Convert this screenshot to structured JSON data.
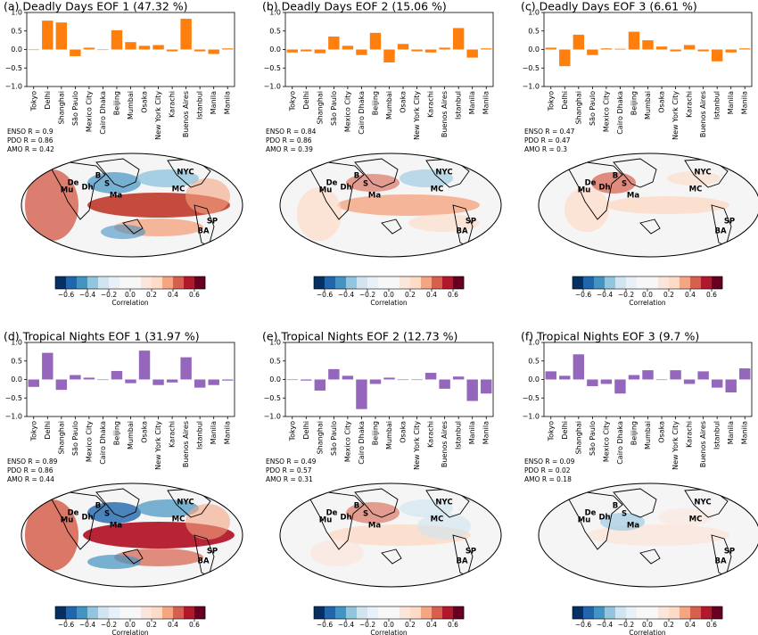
{
  "chart_data": [
    {
      "type": "bar",
      "title": "(a) Deadly Days EOF 1 (47.32 %)",
      "categories": [
        "Tokyo",
        "Delhi",
        "Shanghai",
        "São Paulo",
        "Mexico City",
        "Cairo Dhaka",
        "Beijing",
        "Mumbai",
        "Osaka",
        "New York City",
        "Karachi",
        "Buenos Aires",
        "Istanbul",
        "Manila",
        "Manila"
      ],
      "values": [
        0.0,
        0.78,
        0.73,
        -0.18,
        0.05,
        0.0,
        0.52,
        0.2,
        0.1,
        0.12,
        -0.05,
        0.83,
        -0.05,
        -0.12,
        0.03
      ],
      "color": "#ff7f0e",
      "ylim": [
        -1,
        1
      ],
      "yticks": [
        {
          "value": -1,
          "label": "−1.0"
        },
        {
          "value": -0.5,
          "label": "−0.5"
        },
        {
          "value": 0,
          "label": "0.0"
        },
        {
          "value": 0.5,
          "label": "0.5"
        },
        {
          "value": 1,
          "label": "1.0"
        }
      ],
      "annotations": [
        "ENSO R = 0.9",
        "PDO R = 0.86",
        "AMO R = 0.42"
      ],
      "map_labels": [
        "B",
        "S",
        "De",
        "Dh",
        "Mu",
        "Ma",
        "NYC",
        "MC",
        "SP",
        "BA"
      ],
      "colorbar": {
        "label": "Correlation",
        "lim": [
          -0.7,
          0.7
        ],
        "ticks": [
          {
            "value": -0.6,
            "label": "−0.6"
          },
          {
            "value": -0.4,
            "label": "−0.4"
          },
          {
            "value": -0.2,
            "label": "−0.2"
          },
          {
            "value": 0,
            "label": "0.0"
          },
          {
            "value": 0.2,
            "label": "0.2"
          },
          {
            "value": 0.4,
            "label": "0.4"
          },
          {
            "value": 0.6,
            "label": "0.6"
          }
        ]
      }
    },
    {
      "type": "bar",
      "title": "(b) Deadly Days EOF 2 (15.06 %)",
      "categories": [
        "Tokyo",
        "Delhi",
        "Shanghai",
        "São Paulo",
        "Mexico City",
        "Cairo Dhaka",
        "Beijing",
        "Mumbai",
        "Osaka",
        "New York City",
        "Karachi",
        "Buenos Aires",
        "Istanbul",
        "Manila",
        "Manila"
      ],
      "values": [
        -0.08,
        -0.05,
        -0.1,
        0.35,
        0.1,
        -0.15,
        0.45,
        -0.35,
        0.15,
        -0.05,
        -0.08,
        0.05,
        0.58,
        -0.22,
        0.03
      ],
      "color": "#ff7f0e",
      "ylim": [
        -1,
        1
      ],
      "yticks": [
        {
          "value": -1,
          "label": "−1.0"
        },
        {
          "value": -0.5,
          "label": "−0.5"
        },
        {
          "value": 0,
          "label": "0.0"
        },
        {
          "value": 0.5,
          "label": "0.5"
        },
        {
          "value": 1,
          "label": "1.0"
        }
      ],
      "annotations": [
        "ENSO R = 0.84",
        "PDO R = 0.86",
        "AMO R = 0.39"
      ],
      "map_labels": [
        "B",
        "S",
        "De",
        "Dh",
        "Mu",
        "Ma",
        "NYC",
        "MC",
        "SP",
        "BA"
      ],
      "colorbar": {
        "label": "Correlation",
        "lim": [
          -0.7,
          0.7
        ],
        "ticks": [
          {
            "value": -0.6,
            "label": "−0.6"
          },
          {
            "value": -0.4,
            "label": "−0.4"
          },
          {
            "value": -0.2,
            "label": "−0.2"
          },
          {
            "value": 0,
            "label": "0.0"
          },
          {
            "value": 0.2,
            "label": "0.2"
          },
          {
            "value": 0.4,
            "label": "0.4"
          },
          {
            "value": 0.6,
            "label": "0.6"
          }
        ]
      }
    },
    {
      "type": "bar",
      "title": "(c) Deadly Days EOF 3 (6.61 %)",
      "categories": [
        "Tokyo",
        "Delhi",
        "Shanghai",
        "São Paulo",
        "Mexico City",
        "Cairo Dhaka",
        "Beijing",
        "Mumbai",
        "Osaka",
        "New York City",
        "Karachi",
        "Buenos Aires",
        "Istanbul",
        "Manila",
        "Manila"
      ],
      "values": [
        0.05,
        -0.45,
        0.4,
        -0.15,
        0.03,
        0.02,
        0.48,
        0.25,
        0.08,
        -0.05,
        0.12,
        -0.05,
        -0.32,
        -0.08,
        0.03
      ],
      "color": "#ff7f0e",
      "ylim": [
        -1,
        1
      ],
      "yticks": [
        {
          "value": -1,
          "label": "−1.0"
        },
        {
          "value": -0.5,
          "label": "−0.5"
        },
        {
          "value": 0,
          "label": "0.0"
        },
        {
          "value": 0.5,
          "label": "0.5"
        },
        {
          "value": 1,
          "label": "1.0"
        }
      ],
      "annotations": [
        "ENSO R = 0.47",
        "PDO R = 0.47",
        "AMO R = 0.3"
      ],
      "map_labels": [
        "B",
        "S",
        "De",
        "Dh",
        "Mu",
        "Ma",
        "NYC",
        "MC",
        "SP",
        "BA"
      ],
      "colorbar": {
        "label": "Correlation",
        "lim": [
          -0.7,
          0.7
        ],
        "ticks": [
          {
            "value": -0.6,
            "label": "−0.6"
          },
          {
            "value": -0.4,
            "label": "−0.4"
          },
          {
            "value": -0.2,
            "label": "−0.2"
          },
          {
            "value": 0,
            "label": "0.0"
          },
          {
            "value": 0.2,
            "label": "0.2"
          },
          {
            "value": 0.4,
            "label": "0.4"
          },
          {
            "value": 0.6,
            "label": "0.6"
          }
        ]
      }
    },
    {
      "type": "bar",
      "title": "(d) Tropical Nights EOF 1 (31.97 %)",
      "categories": [
        "Tokyo",
        "Delhi",
        "Shanghai",
        "São Paulo",
        "Mexico City",
        "Cairo Dhaka",
        "Beijing",
        "Mumbai",
        "Osaka",
        "New York City",
        "Karachi",
        "Buenos Aires",
        "Istanbul",
        "Manila",
        "Manila"
      ],
      "values": [
        -0.2,
        0.72,
        -0.28,
        0.12,
        0.05,
        0.0,
        0.23,
        -0.1,
        0.78,
        -0.15,
        -0.08,
        0.6,
        -0.22,
        -0.15,
        -0.03
      ],
      "color": "#9467bd",
      "ylim": [
        -1,
        1
      ],
      "yticks": [
        {
          "value": -1,
          "label": "−1.0"
        },
        {
          "value": -0.5,
          "label": "−0.5"
        },
        {
          "value": 0,
          "label": "0.0"
        },
        {
          "value": 0.5,
          "label": "0.5"
        },
        {
          "value": 1,
          "label": "1.0"
        }
      ],
      "annotations": [
        "ENSO R = 0.89",
        "PDO R = 0.86",
        "AMO R = 0.44"
      ],
      "map_labels": [
        "B",
        "S",
        "De",
        "Dh",
        "Mu",
        "Ma",
        "NYC",
        "MC",
        "SP",
        "BA"
      ],
      "colorbar": {
        "label": "Correlation",
        "lim": [
          -0.7,
          0.7
        ],
        "ticks": [
          {
            "value": -0.6,
            "label": "−0.6"
          },
          {
            "value": -0.4,
            "label": "−0.4"
          },
          {
            "value": -0.2,
            "label": "−0.2"
          },
          {
            "value": 0,
            "label": "0.0"
          },
          {
            "value": 0.2,
            "label": "0.2"
          },
          {
            "value": 0.4,
            "label": "0.4"
          },
          {
            "value": 0.6,
            "label": "0.6"
          }
        ]
      }
    },
    {
      "type": "bar",
      "title": "(e) Tropical Nights EOF 2 (12.73 %)",
      "categories": [
        "Tokyo",
        "Delhi",
        "Shanghai",
        "São Paulo",
        "Mexico City",
        "Cairo Dhaka",
        "Beijing",
        "Mumbai",
        "Osaka",
        "New York City",
        "Karachi",
        "Buenos Aires",
        "Istanbul",
        "Manila",
        "Manila"
      ],
      "values": [
        0.0,
        -0.03,
        -0.3,
        0.28,
        0.1,
        -0.8,
        -0.12,
        0.05,
        0.0,
        0.0,
        0.18,
        -0.25,
        0.08,
        -0.58,
        -0.38
      ],
      "color": "#9467bd",
      "ylim": [
        -1,
        1
      ],
      "yticks": [
        {
          "value": -1,
          "label": "−1.0"
        },
        {
          "value": -0.5,
          "label": "−0.5"
        },
        {
          "value": 0,
          "label": "0.0"
        },
        {
          "value": 0.5,
          "label": "0.5"
        },
        {
          "value": 1,
          "label": "1.0"
        }
      ],
      "annotations": [
        "ENSO R = 0.49",
        "PDO R = 0.57",
        "AMO R = 0.31"
      ],
      "map_labels": [
        "B",
        "S",
        "De",
        "Dh",
        "Mu",
        "Ma",
        "NYC",
        "MC",
        "SP",
        "BA"
      ],
      "colorbar": {
        "label": "Correlation",
        "lim": [
          -0.7,
          0.7
        ],
        "ticks": [
          {
            "value": -0.6,
            "label": "−0.6"
          },
          {
            "value": -0.4,
            "label": "−0.4"
          },
          {
            "value": -0.2,
            "label": "−0.2"
          },
          {
            "value": 0,
            "label": "0.0"
          },
          {
            "value": 0.2,
            "label": "0.2"
          },
          {
            "value": 0.4,
            "label": "0.4"
          },
          {
            "value": 0.6,
            "label": "0.6"
          }
        ]
      }
    },
    {
      "type": "bar",
      "title": "(f) Tropical Nights EOF 3 (9.7 %)",
      "categories": [
        "Tokyo",
        "Delhi",
        "Shanghai",
        "São Paulo",
        "Mexico City",
        "Cairo Dhaka",
        "Beijing",
        "Mumbai",
        "Osaka",
        "New York City",
        "Karachi",
        "Buenos Aires",
        "Istanbul",
        "Manila",
        "Manila"
      ],
      "values": [
        0.22,
        0.1,
        0.68,
        -0.18,
        -0.12,
        -0.38,
        0.12,
        0.25,
        0.0,
        0.25,
        -0.12,
        0.22,
        -0.22,
        -0.35,
        0.3
      ],
      "color": "#9467bd",
      "ylim": [
        -1,
        1
      ],
      "yticks": [
        {
          "value": -1,
          "label": "−1.0"
        },
        {
          "value": -0.5,
          "label": "−0.5"
        },
        {
          "value": 0,
          "label": "0.0"
        },
        {
          "value": 0.5,
          "label": "0.5"
        },
        {
          "value": 1,
          "label": "1.0"
        }
      ],
      "annotations": [
        "ENSO R = 0.09",
        "PDO R = 0.02",
        "AMO R = 0.18"
      ],
      "map_labels": [
        "B",
        "S",
        "De",
        "Dh",
        "Mu",
        "Ma",
        "NYC",
        "MC",
        "SP",
        "BA"
      ],
      "colorbar": {
        "label": "Correlation",
        "lim": [
          -0.7,
          0.7
        ],
        "ticks": [
          {
            "value": -0.6,
            "label": "−0.6"
          },
          {
            "value": -0.4,
            "label": "−0.4"
          },
          {
            "value": -0.2,
            "label": "−0.2"
          },
          {
            "value": 0,
            "label": "0.0"
          },
          {
            "value": 0.2,
            "label": "0.2"
          },
          {
            "value": 0.4,
            "label": "0.4"
          },
          {
            "value": 0.6,
            "label": "0.6"
          }
        ]
      }
    }
  ]
}
